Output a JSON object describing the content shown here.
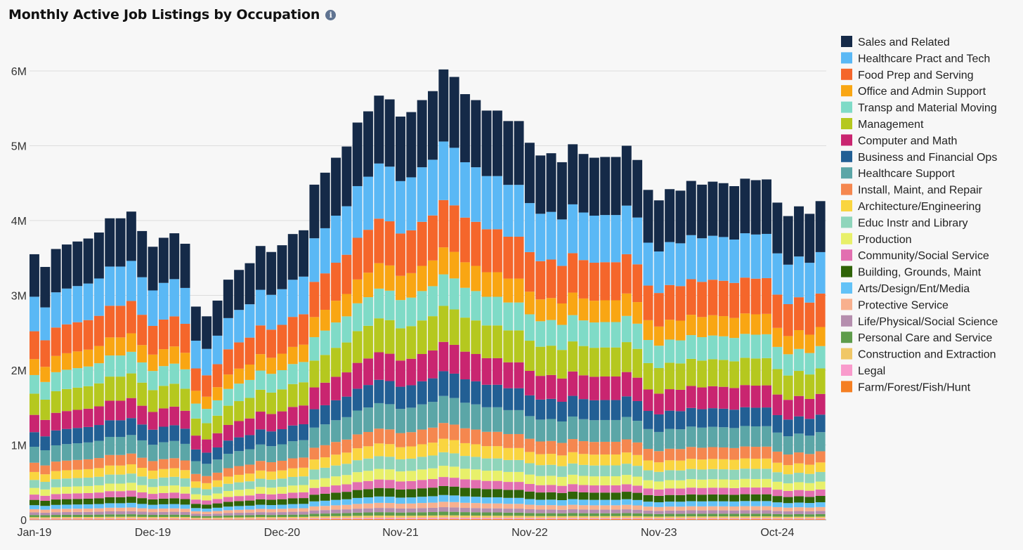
{
  "chart_data": {
    "type": "bar",
    "stacked": true,
    "title": "Monthly Active Job Listings by Occupation",
    "info_icon": "info-icon",
    "y_ticks": [
      "0",
      "1M",
      "2M",
      "3M",
      "4M",
      "5M",
      "6M"
    ],
    "y_tick_values": [
      0,
      1000000,
      2000000,
      3000000,
      4000000,
      5000000,
      6000000
    ],
    "ylim": [
      0,
      6300000
    ],
    "grid": true,
    "legend_position": "right",
    "x_tick_labels": [
      {
        "index": 0,
        "label": "Jan-19"
      },
      {
        "index": 11,
        "label": "Dec-19"
      },
      {
        "index": 23,
        "label": "Dec-20"
      },
      {
        "index": 34,
        "label": "Nov-21"
      },
      {
        "index": 46,
        "label": "Nov-22"
      },
      {
        "index": 58,
        "label": "Nov-23"
      },
      {
        "index": 69,
        "label": "Oct-24"
      }
    ],
    "categories": [
      "Jan-19",
      "Feb-19",
      "Mar-19",
      "Apr-19",
      "May-19",
      "Jun-19",
      "Jul-19",
      "Aug-19",
      "Sep-19",
      "Oct-19",
      "Nov-19",
      "Dec-19",
      "Jan-20",
      "Feb-20",
      "Mar-20",
      "Apr-20",
      "May-20",
      "Jun-20",
      "Jul-20",
      "Aug-20",
      "Sep-20",
      "Oct-20",
      "Nov-20",
      "Dec-20",
      "Jan-21",
      "Feb-21",
      "Mar-21",
      "Apr-21",
      "May-21",
      "Jun-21",
      "Jul-21",
      "Aug-21",
      "Sep-21",
      "Oct-21",
      "Nov-21",
      "Dec-21",
      "Jan-22",
      "Feb-22",
      "Mar-22",
      "Apr-22",
      "May-22",
      "Jun-22",
      "Jul-22",
      "Aug-22",
      "Sep-22",
      "Oct-22",
      "Nov-22",
      "Dec-22",
      "Jan-23",
      "Feb-23",
      "Mar-23",
      "Apr-23",
      "May-23",
      "Jun-23",
      "Jul-23",
      "Aug-23",
      "Sep-23",
      "Oct-23",
      "Nov-23",
      "Dec-23",
      "Jan-24",
      "Feb-24",
      "Mar-24",
      "Apr-24",
      "May-24",
      "Jun-24",
      "Jul-24",
      "Aug-24",
      "Sep-24",
      "Oct-24",
      "Nov-24",
      "Dec-24",
      "Jan-25",
      "Feb-25"
    ],
    "totals": [
      3550000,
      3380000,
      3620000,
      3680000,
      3720000,
      3760000,
      3840000,
      4030000,
      4030000,
      4120000,
      3860000,
      3650000,
      3770000,
      3830000,
      3690000,
      2850000,
      2720000,
      2930000,
      3210000,
      3340000,
      3430000,
      3660000,
      3580000,
      3670000,
      3820000,
      3870000,
      4480000,
      4640000,
      4840000,
      4990000,
      5310000,
      5460000,
      5670000,
      5620000,
      5390000,
      5450000,
      5610000,
      5730000,
      6020000,
      5920000,
      5690000,
      5610000,
      5470000,
      5470000,
      5330000,
      5330000,
      5040000,
      4870000,
      4900000,
      4780000,
      5020000,
      4890000,
      4840000,
      4850000,
      4850000,
      5000000,
      4810000,
      4410000,
      4270000,
      4420000,
      4400000,
      4530000,
      4480000,
      4520000,
      4500000,
      4460000,
      4560000,
      4540000,
      4550000,
      4240000,
      4060000,
      4190000,
      4090000,
      4260000
    ],
    "series": [
      {
        "name": "Sales and Related",
        "color": "#152a48",
        "share": 0.16
      },
      {
        "name": "Healthcare Pract and Tech",
        "color": "#5ab8f5",
        "share": 0.13
      },
      {
        "name": "Food Prep and Serving",
        "color": "#f5662b",
        "share": 0.105
      },
      {
        "name": "Office and Admin Support",
        "color": "#f9a613",
        "share": 0.06
      },
      {
        "name": "Transp and Material Moving",
        "color": "#7fdbc7",
        "share": 0.07
      },
      {
        "name": "Management",
        "color": "#b5c81f",
        "share": 0.08
      },
      {
        "name": "Computer and Math",
        "color": "#c92570",
        "share": 0.065
      },
      {
        "name": "Business and Financial Ops",
        "color": "#225f94",
        "share": 0.055
      },
      {
        "name": "Healthcare Support",
        "color": "#5ba6a7",
        "share": 0.06
      },
      {
        "name": "Install, Maint, and Repair",
        "color": "#f5874f",
        "share": 0.035
      },
      {
        "name": "Architecture/Engineering",
        "color": "#fad540",
        "share": 0.03
      },
      {
        "name": "Educ Instr and Library",
        "color": "#8fd5bb",
        "share": 0.03
      },
      {
        "name": "Production",
        "color": "#e8f06a",
        "share": 0.025
      },
      {
        "name": "Community/Social Service",
        "color": "#e26fb0",
        "share": 0.02
      },
      {
        "name": "Building, Grounds, Maint",
        "color": "#2f6307",
        "share": 0.02
      },
      {
        "name": "Arts/Design/Ent/Media",
        "color": "#63c2f7",
        "share": 0.015
      },
      {
        "name": "Protective Service",
        "color": "#f8b08e",
        "share": 0.012
      },
      {
        "name": "Life/Physical/Social Science",
        "color": "#b58eae",
        "share": 0.01
      },
      {
        "name": "Personal Care and Service",
        "color": "#5e9c4b",
        "share": 0.008
      },
      {
        "name": "Construction and Extraction",
        "color": "#f0c766",
        "share": 0.005
      },
      {
        "name": "Legal",
        "color": "#f99bcc",
        "share": 0.003
      },
      {
        "name": "Farm/Forest/Fish/Hunt",
        "color": "#f57f22",
        "share": 0.002
      }
    ]
  }
}
